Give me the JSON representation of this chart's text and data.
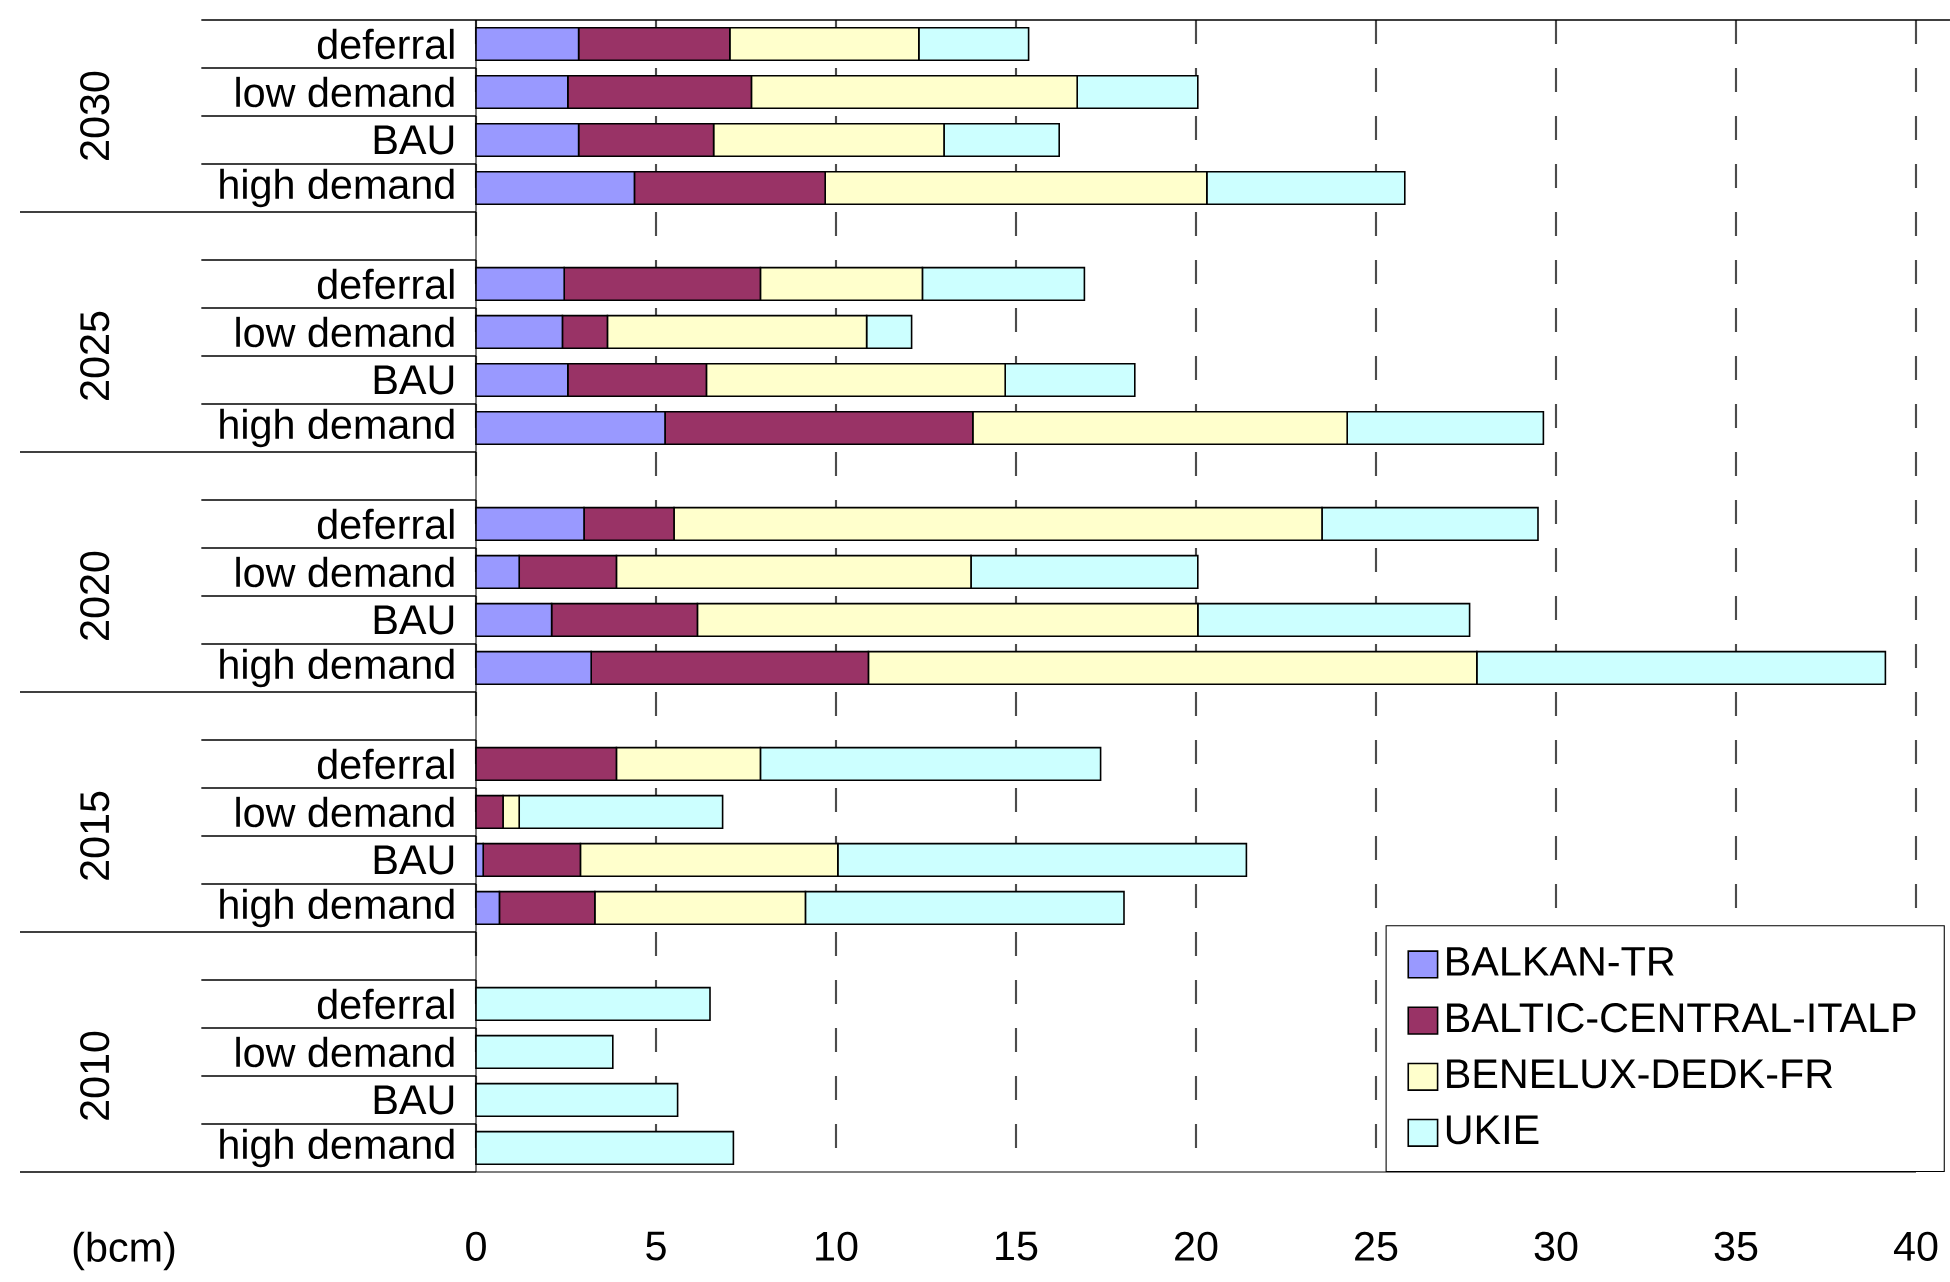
{
  "chart_data": {
    "type": "bar",
    "orientation": "horizontal",
    "stacked": true,
    "categories": [
      "deferral",
      "low demand",
      "BAU",
      "high demand",
      null,
      "deferral",
      "low demand",
      "BAU",
      "high demand",
      null,
      "deferral",
      "low demand",
      "BAU",
      "high demand",
      null,
      "deferral",
      "low demand",
      "BAU",
      "high demand",
      null,
      "deferral",
      "low demand",
      "BAU",
      "high demand"
    ],
    "annotations": [
      "2030",
      "2025",
      "2020",
      "2015",
      "2010"
    ],
    "xlabel": "(bcm)",
    "xlim": [
      0,
      40
    ],
    "xticks": [
      0,
      5,
      10,
      15,
      20,
      25,
      30,
      35,
      40
    ],
    "grid": "x",
    "legend": "bottom right",
    "series": [
      {
        "name": "BALKAN-TR",
        "color": "#9999ff",
        "values": [
          2.85,
          2.55,
          2.85,
          4.4,
          null,
          2.45,
          2.4,
          2.55,
          5.25,
          null,
          3.0,
          1.2,
          2.1,
          3.2,
          null,
          0,
          0,
          0.2,
          0.65,
          null,
          0,
          0,
          0,
          0
        ]
      },
      {
        "name": "BALTIC-CENTRAL-ITALP",
        "color": "#993366",
        "values": [
          4.2,
          5.1,
          3.75,
          5.3,
          null,
          5.45,
          1.25,
          3.85,
          8.55,
          null,
          2.5,
          2.7,
          4.05,
          7.7,
          null,
          3.9,
          0.75,
          2.7,
          2.65,
          null,
          0,
          0,
          0,
          0
        ]
      },
      {
        "name": "BENELUX-DEDK-FR",
        "color": "#ffffcc",
        "values": [
          5.25,
          9.05,
          6.4,
          10.6,
          null,
          4.5,
          7.2,
          8.3,
          10.4,
          null,
          18.0,
          9.85,
          13.9,
          16.9,
          null,
          4.0,
          0.45,
          7.15,
          5.85,
          null,
          0,
          0,
          0,
          0
        ]
      },
      {
        "name": "UKIE",
        "color": "#ccffff",
        "values": [
          3.05,
          3.35,
          3.2,
          5.5,
          null,
          4.5,
          1.25,
          3.6,
          5.45,
          null,
          6.0,
          6.3,
          7.55,
          11.35,
          null,
          9.45,
          5.65,
          11.35,
          8.85,
          null,
          6.5,
          3.8,
          5.6,
          7.15
        ]
      }
    ]
  }
}
